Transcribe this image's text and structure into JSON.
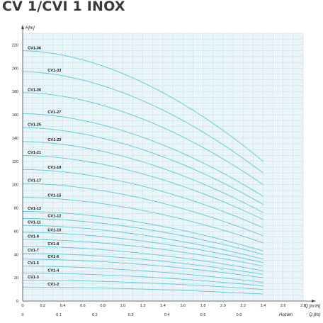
{
  "title": "CV 1/CVI 1 INOX",
  "chart_data": {
    "type": "line",
    "title": "CV 1/CVI 1 INOX",
    "ylabel": "H[m]",
    "xlabel": "Q [m³/h]",
    "x2label_prefix": "Hozam",
    "x2label": "Q [l/s]",
    "xlim": [
      0,
      2.8
    ],
    "ylim": [
      0,
      230
    ],
    "x_ticks": [
      "0",
      "0.2",
      "0.4",
      "0.6",
      "0.8",
      "1.0",
      "1.2",
      "1.4",
      "1.6",
      "1.8",
      "2.0",
      "2.2",
      "2.4",
      "2.6",
      "2.8"
    ],
    "x2_ticks": [
      {
        "label": "0",
        "q": 0
      },
      {
        "label": "0.1",
        "q": 0.36
      },
      {
        "label": "0.2",
        "q": 0.72
      },
      {
        "label": "0.3",
        "q": 1.08
      },
      {
        "label": "0.4",
        "q": 1.44
      },
      {
        "label": "0.5",
        "q": 1.8
      },
      {
        "label": "0.6",
        "q": 2.16
      }
    ],
    "y_ticks": [
      "0",
      "20",
      "40",
      "60",
      "80",
      "100",
      "120",
      "140",
      "160",
      "180",
      "200",
      "220"
    ],
    "grid": true,
    "q_end": 2.4,
    "series": [
      {
        "name": "CV1-36",
        "h0": 215,
        "h_end": 120
      },
      {
        "name": "CV1-33",
        "h0": 197,
        "h_end": 110
      },
      {
        "name": "CV1-30",
        "h0": 179,
        "h_end": 100
      },
      {
        "name": "CV1-27",
        "h0": 161,
        "h_end": 90
      },
      {
        "name": "CV1-25",
        "h0": 149,
        "h_end": 83
      },
      {
        "name": "CV1-23",
        "h0": 137,
        "h_end": 76
      },
      {
        "name": "CV1-21",
        "h0": 125,
        "h_end": 70
      },
      {
        "name": "CV1-19",
        "h0": 113,
        "h_end": 63
      },
      {
        "name": "CV1-17",
        "h0": 101,
        "h_end": 56
      },
      {
        "name": "CV1-15",
        "h0": 89,
        "h_end": 50
      },
      {
        "name": "CV1-13",
        "h0": 77,
        "h_end": 43
      },
      {
        "name": "CV1-12",
        "h0": 71,
        "h_end": 40
      },
      {
        "name": "CV1-11",
        "h0": 65,
        "h_end": 36
      },
      {
        "name": "CV1-10",
        "h0": 59,
        "h_end": 33
      },
      {
        "name": "CV1-9",
        "h0": 53,
        "h_end": 30
      },
      {
        "name": "CV1-8",
        "h0": 47,
        "h_end": 26
      },
      {
        "name": "CV1-7",
        "h0": 41,
        "h_end": 23
      },
      {
        "name": "CV1-6",
        "h0": 36,
        "h_end": 20
      },
      {
        "name": "CV1-5",
        "h0": 30,
        "h_end": 16
      },
      {
        "name": "CV1-4",
        "h0": 24,
        "h_end": 13
      },
      {
        "name": "CV1-3",
        "h0": 18,
        "h_end": 10
      },
      {
        "name": "CV1-2",
        "h0": 12,
        "h_end": 6
      }
    ],
    "colors": {
      "curve": "#5cc8d8",
      "grid": "#c4dce4",
      "plot_bg": "#e9f5f9",
      "axis": "#444444"
    }
  }
}
